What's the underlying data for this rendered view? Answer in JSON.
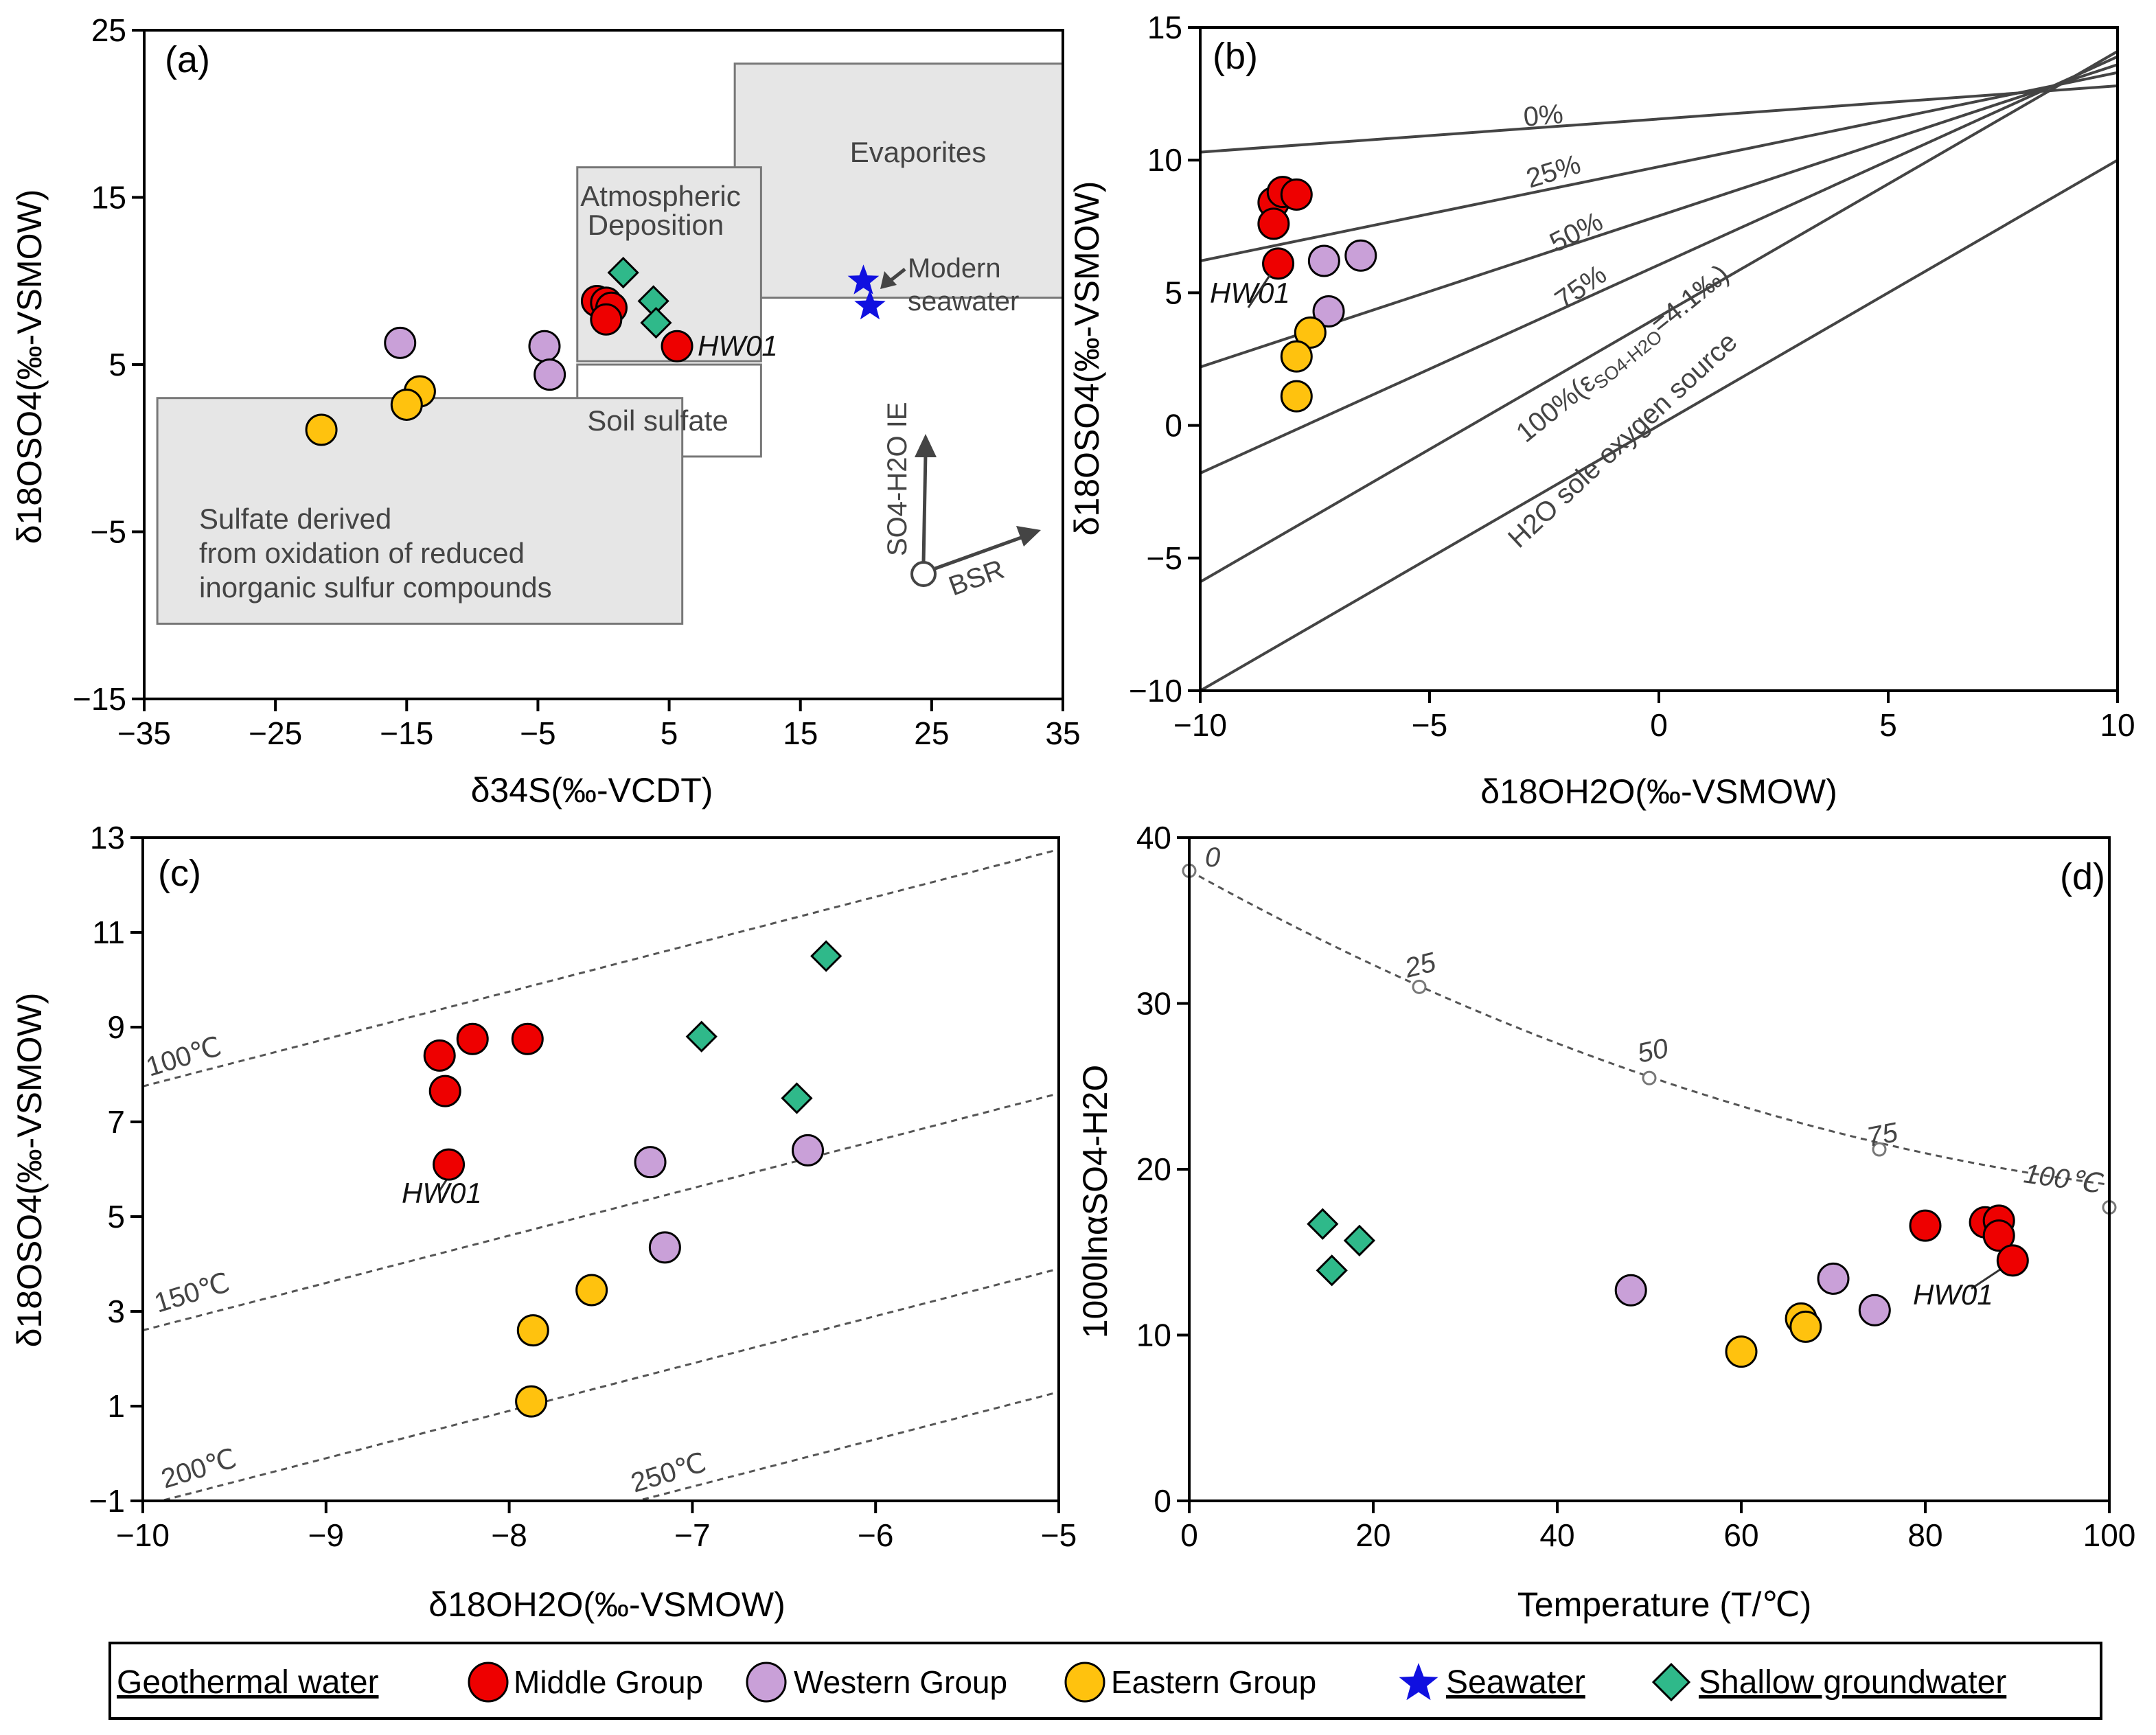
{
  "colors": {
    "middle": "#ee0000",
    "western": "#c9a0d8",
    "eastern": "#ffc20e",
    "seawater": "#1010e0",
    "shallow": "#2fb98a",
    "box": "#e6e6e6"
  },
  "legend": {
    "geothermal": "Geothermal water",
    "middle": "Middle Group",
    "western": "Western Group",
    "eastern": "Eastern Group",
    "seawater": "Seawater",
    "shallow": "Shallow groundwater"
  },
  "chart_data": [
    {
      "panel": "(a)",
      "type": "scatter",
      "xlabel": "δ34S(‰-VCDT)",
      "ylabel": "δ18OSO4(‰-VSMOW)",
      "xlim": [
        -35,
        35
      ],
      "ylim": [
        -15,
        25
      ],
      "xticks": [
        "−35",
        "−25",
        "−15",
        "−5",
        "5",
        "15",
        "25",
        "35"
      ],
      "yticks": [
        "25",
        "15",
        "5",
        "−5",
        "−15"
      ],
      "regions": [
        {
          "name": "Evaporites",
          "x": [
            10,
            35
          ],
          "y": [
            9,
            23
          ]
        },
        {
          "name": "Atmospheric Deposition",
          "x": [
            -2,
            12
          ],
          "y": [
            5.2,
            16.8
          ]
        },
        {
          "name": "Soil sulfate",
          "x": [
            -2,
            12
          ],
          "y": [
            -0.5,
            5
          ]
        },
        {
          "name": "Sulfate derived from oxidation of reduced inorganic sulfur compounds",
          "x": [
            -34,
            6
          ],
          "y": [
            -10.5,
            3
          ]
        }
      ],
      "region_labels": {
        "evaporites": "Evaporites",
        "atmo_1": "Atmospheric",
        "atmo_2": "Deposition",
        "soil": "Soil sulfate",
        "ox_1": "Sulfate derived",
        "ox_2": "from oxidation of reduced",
        "ox_3": "inorganic sulfur compounds"
      },
      "annotations": {
        "seawater_1": "Modern",
        "seawater_2": "seawater",
        "hw01": "HW01",
        "ie": "SO4-H2O IE",
        "bsr": "BSR"
      },
      "series": [
        {
          "name": "Middle Group",
          "points": [
            [
              -0.5,
              8.8
            ],
            [
              0.2,
              8.7
            ],
            [
              0.6,
              8.4
            ],
            [
              0.2,
              7.7
            ],
            [
              5.6,
              6.1
            ]
          ]
        },
        {
          "name": "Western Group",
          "points": [
            [
              -15.5,
              6.3
            ],
            [
              -4.5,
              6.1
            ],
            [
              -4.1,
              4.4
            ]
          ]
        },
        {
          "name": "Eastern Group",
          "points": [
            [
              -21.5,
              1.1
            ],
            [
              -14,
              3.4
            ],
            [
              -15,
              2.6
            ]
          ]
        },
        {
          "name": "Seawater",
          "points": [
            [
              19.8,
              10.0
            ],
            [
              20.3,
              8.5
            ]
          ]
        },
        {
          "name": "Shallow groundwater",
          "points": [
            [
              1.5,
              10.5
            ],
            [
              3.8,
              8.8
            ],
            [
              4.0,
              7.5
            ]
          ]
        }
      ]
    },
    {
      "panel": "(b)",
      "type": "scatter",
      "xlabel": "δ18OH2O(‰-VSMOW)",
      "ylabel": "δ18OSO4(‰-VSMOW)",
      "xlim": [
        -10,
        10
      ],
      "ylim": [
        -10,
        15
      ],
      "xticks": [
        "−10",
        "−5",
        "0",
        "5",
        "10"
      ],
      "yticks": [
        "15",
        "10",
        "5",
        "0",
        "−5",
        "−10"
      ],
      "mixing_lines": [
        {
          "label": "0%",
          "x": [
            -10,
            10
          ],
          "y": [
            10.3,
            12.8
          ]
        },
        {
          "label": "25%",
          "x": [
            -10,
            10
          ],
          "y": [
            6.2,
            13.3
          ]
        },
        {
          "label": "50%",
          "x": [
            -10,
            10
          ],
          "y": [
            2.2,
            13.6
          ]
        },
        {
          "label": "75%",
          "x": [
            -10,
            10
          ],
          "y": [
            -1.8,
            13.9
          ]
        },
        {
          "label": "100%(εSO4-H2O=4.1‰)",
          "x": [
            -10,
            10
          ],
          "y": [
            -5.9,
            14.1
          ]
        },
        {
          "label": "H2O sole oxygen source",
          "x": [
            -10,
            10
          ],
          "y": [
            -10,
            10
          ]
        }
      ],
      "line_labels": {
        "l0": "0%",
        "l25": "25%",
        "l50": "50%",
        "l75": "75%",
        "l100": "100%(ε",
        "l100_sub": "SO4-H2O",
        "l100_end": "=4.1‰)",
        "h2o": "H2O sole oxygen source"
      },
      "annotations": {
        "hw01": "HW01"
      },
      "series": [
        {
          "name": "Middle Group",
          "points": [
            [
              -8.4,
              8.4
            ],
            [
              -8.2,
              8.8
            ],
            [
              -7.9,
              8.7
            ],
            [
              -8.4,
              7.6
            ],
            [
              -8.3,
              6.1
            ]
          ]
        },
        {
          "name": "Western Group",
          "points": [
            [
              -7.3,
              6.2
            ],
            [
              -6.5,
              6.4
            ],
            [
              -7.2,
              4.3
            ]
          ]
        },
        {
          "name": "Eastern Group",
          "points": [
            [
              -7.6,
              3.5
            ],
            [
              -7.9,
              2.6
            ],
            [
              -7.9,
              1.1
            ]
          ]
        }
      ]
    },
    {
      "panel": "(c)",
      "type": "scatter",
      "xlabel": "δ18OH2O(‰-VSMOW)",
      "ylabel": "δ18OSO4(‰-VSMOW)",
      "xlim": [
        -10,
        -5
      ],
      "ylim": [
        -1,
        13
      ],
      "xticks": [
        "−10",
        "−9",
        "−8",
        "−7",
        "−6",
        "−5"
      ],
      "yticks": [
        "13",
        "11",
        "9",
        "7",
        "5",
        "3",
        "1",
        "−1"
      ],
      "isotherms": [
        {
          "label": "100℃",
          "x": [
            -10,
            -5
          ],
          "y": [
            7.75,
            12.75
          ]
        },
        {
          "label": "150℃",
          "x": [
            -10,
            -5
          ],
          "y": [
            2.6,
            7.6
          ]
        },
        {
          "label": "200℃",
          "x": [
            -10,
            -5
          ],
          "y": [
            -1.1,
            3.9
          ]
        },
        {
          "label": "250℃",
          "x": [
            -10,
            -5
          ],
          "y": [
            -3.7,
            1.3
          ]
        }
      ],
      "isotherm_labels": {
        "t100": "100℃",
        "t150": "150℃",
        "t200": "200℃",
        "t250": "250℃"
      },
      "annotations": {
        "hw01": "HW01"
      },
      "series": [
        {
          "name": "Middle Group",
          "points": [
            [
              -8.38,
              8.4
            ],
            [
              -8.2,
              8.75
            ],
            [
              -7.9,
              8.75
            ],
            [
              -8.35,
              7.65
            ],
            [
              -8.33,
              6.1
            ]
          ]
        },
        {
          "name": "Western Group",
          "points": [
            [
              -7.23,
              6.15
            ],
            [
              -6.37,
              6.4
            ],
            [
              -7.15,
              4.35
            ]
          ]
        },
        {
          "name": "Eastern Group",
          "points": [
            [
              -7.55,
              3.45
            ],
            [
              -7.87,
              2.6
            ],
            [
              -7.88,
              1.1
            ]
          ]
        },
        {
          "name": "Shallow groundwater",
          "points": [
            [
              -6.27,
              10.5
            ],
            [
              -6.95,
              8.8
            ],
            [
              -6.43,
              7.5
            ]
          ]
        }
      ]
    },
    {
      "panel": "(d)",
      "type": "scatter",
      "xlabel": "Temperature (T/℃)",
      "ylabel": "1000lnαSO4-H2O",
      "xlim": [
        0,
        100
      ],
      "ylim": [
        0,
        40
      ],
      "xticks": [
        "0",
        "20",
        "40",
        "60",
        "80",
        "100"
      ],
      "yticks": [
        "40",
        "30",
        "20",
        "10",
        "0"
      ],
      "equilibrium_curve": {
        "x": [
          0,
          25,
          50,
          75,
          100
        ],
        "y": [
          38.0,
          31.0,
          25.5,
          21.2,
          17.7
        ]
      },
      "curve_labels": {
        "c0": "0",
        "c25": "25",
        "c50": "50",
        "c75": "75",
        "c100": "100℃"
      },
      "annotations": {
        "hw01": "HW01"
      },
      "series": [
        {
          "name": "Middle Group",
          "points": [
            [
              80,
              16.6
            ],
            [
              86.5,
              16.8
            ],
            [
              88,
              16.9
            ],
            [
              88,
              16.0
            ],
            [
              89.5,
              14.5
            ]
          ]
        },
        {
          "name": "Western Group",
          "points": [
            [
              48,
              12.7
            ],
            [
              70,
              13.4
            ],
            [
              74.5,
              11.5
            ]
          ]
        },
        {
          "name": "Eastern Group",
          "points": [
            [
              60,
              9.0
            ],
            [
              66.5,
              11.0
            ],
            [
              67,
              10.5
            ]
          ]
        },
        {
          "name": "Shallow groundwater",
          "points": [
            [
              14.5,
              16.7
            ],
            [
              18.5,
              15.7
            ],
            [
              15.5,
              13.9
            ]
          ]
        }
      ]
    }
  ]
}
